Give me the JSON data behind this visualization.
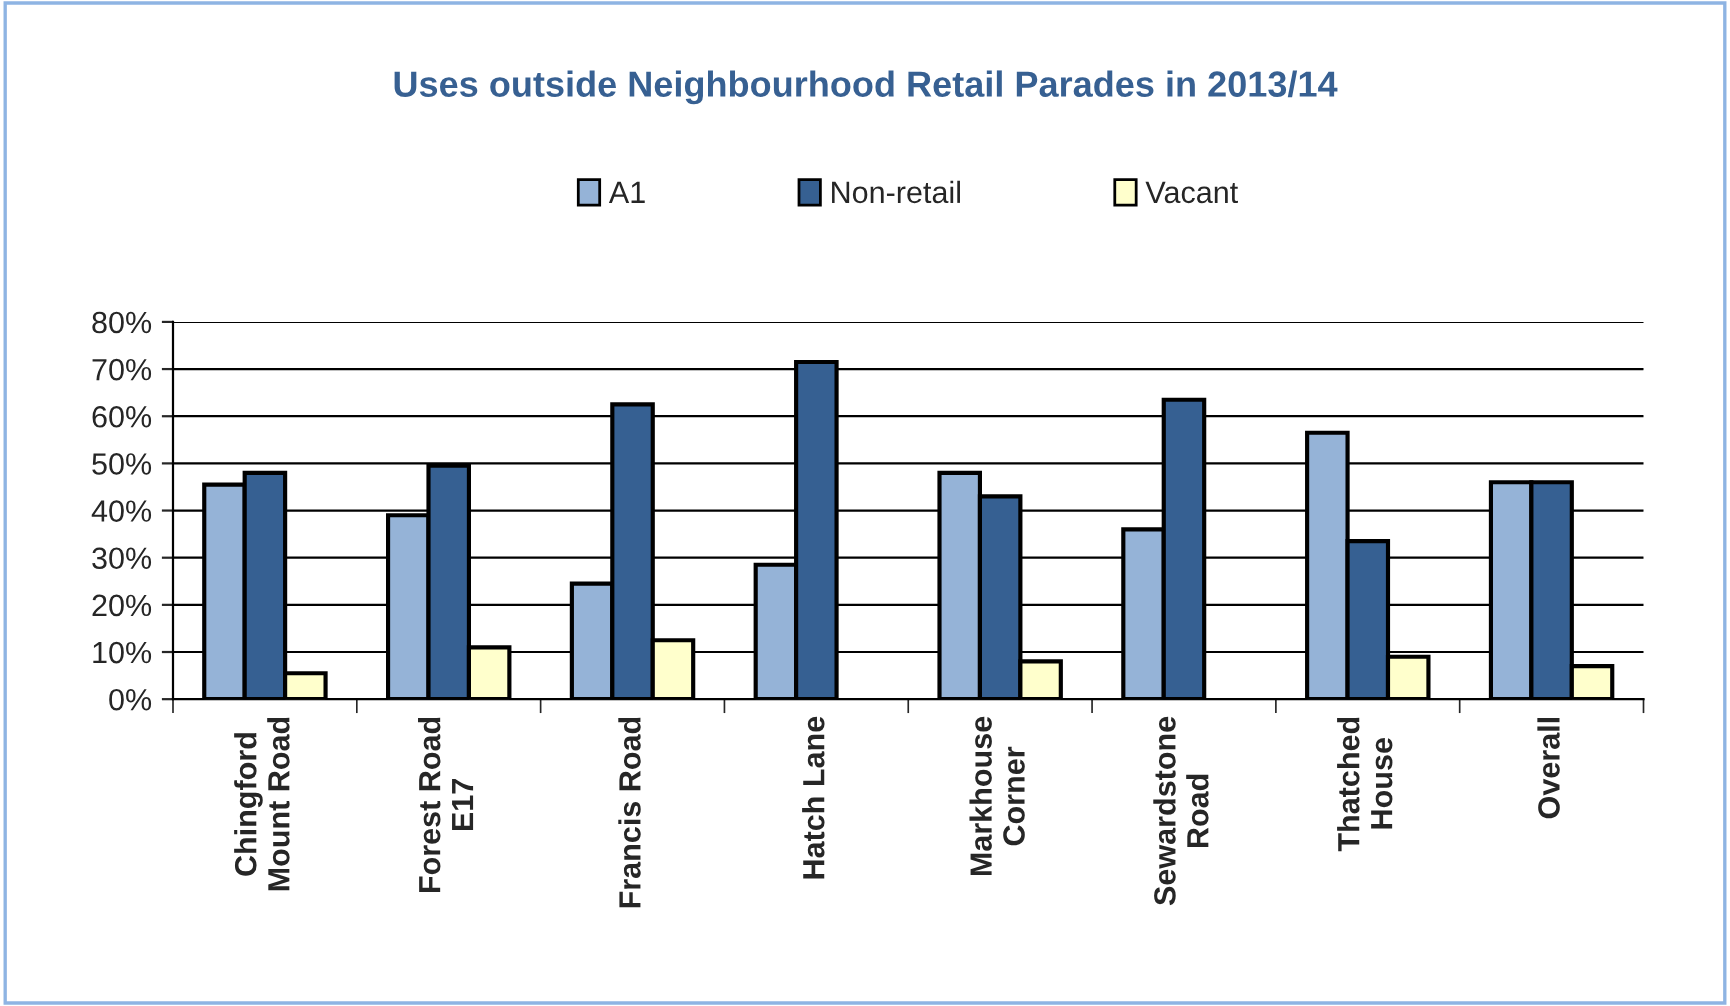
{
  "chart_data": {
    "type": "bar",
    "title": "Uses outside Neighbourhood Retail Parades in 2013/14",
    "categories": [
      "Chingford\nMount Road",
      "Forest Road\nE17",
      "Francis Road",
      "Hatch Lane",
      "Markhouse\nCorner",
      "Sewardstone\nRoad",
      "Thatched\nHouse",
      "Overall"
    ],
    "series": [
      {
        "name": "A1",
        "color": "#95b3d7",
        "values": [
          45.5,
          39,
          24.5,
          28.5,
          48,
          36,
          56.5,
          46
        ]
      },
      {
        "name": "Non-retail",
        "color": "#366092",
        "values": [
          48,
          49.5,
          62.5,
          71.5,
          43,
          63.5,
          33.5,
          46
        ]
      },
      {
        "name": "Vacant",
        "color": "#ffffcc",
        "values": [
          5.5,
          11,
          12.5,
          null,
          8,
          null,
          9,
          7
        ]
      }
    ],
    "ylim": [
      0,
      80
    ],
    "yticks": [
      {
        "value": 0,
        "label": "0%"
      },
      {
        "value": 10,
        "label": "10%"
      },
      {
        "value": 20,
        "label": "20%"
      },
      {
        "value": 30,
        "label": "30%"
      },
      {
        "value": 40,
        "label": "40%"
      },
      {
        "value": 50,
        "label": "50%"
      },
      {
        "value": 60,
        "label": "60%"
      },
      {
        "value": 70,
        "label": "70%"
      },
      {
        "value": 80,
        "label": "80%"
      }
    ],
    "grid": "y",
    "legend": "top"
  }
}
